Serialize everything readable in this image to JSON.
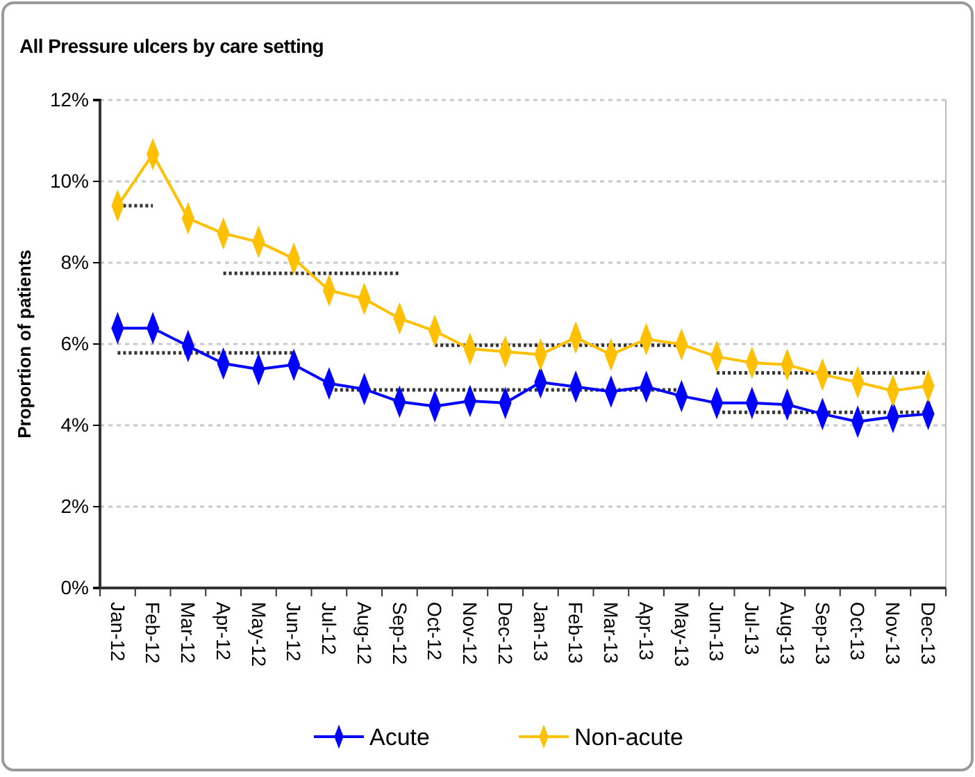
{
  "chart_data": {
    "type": "line",
    "title": "All Pressure ulcers by care setting",
    "ylabel": "Proportion of patients",
    "categories": [
      "Jan-12",
      "Feb-12",
      "Mar-12",
      "Apr-12",
      "May-12",
      "Jun-12",
      "Jul-12",
      "Aug-12",
      "Sep-12",
      "Oct-12",
      "Nov-12",
      "Dec-12",
      "Jan-13",
      "Feb-13",
      "Mar-13",
      "Apr-13",
      "May-13",
      "Jun-13",
      "Jul-13",
      "Aug-13",
      "Sep-13",
      "Oct-13",
      "Nov-13",
      "Dec-13"
    ],
    "series": [
      {
        "name": "Acute",
        "color": "#0000ff",
        "values": [
          6.39,
          6.39,
          5.95,
          5.52,
          5.38,
          5.49,
          5.03,
          4.89,
          4.58,
          4.47,
          4.6,
          4.55,
          5.06,
          4.95,
          4.83,
          4.95,
          4.72,
          4.55,
          4.55,
          4.51,
          4.28,
          4.09,
          4.21,
          4.28
        ]
      },
      {
        "name": "Non-acute",
        "color": "#ffc000",
        "values": [
          9.4,
          10.67,
          9.09,
          8.72,
          8.51,
          8.1,
          7.32,
          7.11,
          6.63,
          6.32,
          5.88,
          5.81,
          5.74,
          6.16,
          5.74,
          6.12,
          5.99,
          5.69,
          5.54,
          5.49,
          5.25,
          5.06,
          4.85,
          4.97
        ]
      },
      {
        "type": "line",
        "color": "#333333",
        "line_style": "dotted",
        "marker": "none",
        "x": [
          "Jan-12",
          "Feb-12"
        ],
        "values": [
          9.4,
          9.4
        ]
      },
      {
        "type": "line",
        "color": "#333333",
        "line_style": "dotted",
        "marker": "none",
        "x": [
          "Apr-12",
          "Sep-12"
        ],
        "values": [
          7.74,
          7.74
        ]
      },
      {
        "type": "line",
        "color": "#333333",
        "line_style": "dotted",
        "marker": "none",
        "x": [
          "Oct-12",
          "May-13"
        ],
        "values": [
          5.97,
          5.97
        ]
      },
      {
        "type": "line",
        "color": "#333333",
        "line_style": "dotted",
        "marker": "none",
        "x": [
          "Jun-13",
          "Dec-13"
        ],
        "values": [
          5.29,
          5.29
        ]
      },
      {
        "type": "line",
        "color": "#333333",
        "line_style": "dotted",
        "marker": "none",
        "x": [
          "Jan-12",
          "Jun-12"
        ],
        "values": [
          5.78,
          5.78
        ]
      },
      {
        "type": "line",
        "color": "#333333",
        "line_style": "dotted",
        "marker": "none",
        "x": [
          "Jul-12",
          "May-13"
        ],
        "values": [
          4.87,
          4.87
        ]
      },
      {
        "type": "line",
        "color": "#333333",
        "line_style": "dotted",
        "marker": "none",
        "x": [
          "Jun-13",
          "Dec-13"
        ],
        "values": [
          4.32,
          4.32
        ]
      }
    ],
    "ylim": [
      0,
      12
    ],
    "yticks": [
      {
        "value": 0,
        "label": "0%"
      },
      {
        "value": 2,
        "label": "2%"
      },
      {
        "value": 4,
        "label": "4%"
      },
      {
        "value": 6,
        "label": "6%"
      },
      {
        "value": 8,
        "label": "8%"
      },
      {
        "value": 10,
        "label": "10%"
      },
      {
        "value": 12,
        "label": "12%"
      }
    ],
    "grid": "y",
    "legend": "bottom",
    "marker": "diamond",
    "line_style": "solid"
  }
}
